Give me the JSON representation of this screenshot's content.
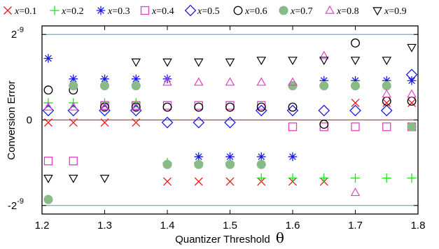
{
  "chart_data": {
    "type": "scatter",
    "title": "",
    "xlabel": "Quantizer Threshold",
    "xlabel_symbol": "θ",
    "ylabel": "Conversion Error",
    "xlim": [
      1.2,
      1.8
    ],
    "x_ticks": [
      1.2,
      1.3,
      1.4,
      1.5,
      1.6,
      1.7,
      1.8
    ],
    "x_tick_labels": [
      "1.2",
      "1.3",
      "1.4",
      "1.5",
      "1.6",
      "1.7",
      "1.8"
    ],
    "ylim": [
      -1.1,
      1.1
    ],
    "y_ticks": [
      {
        "value": 1,
        "base": "2",
        "exp": "-9"
      },
      {
        "value": 0,
        "base": "0",
        "exp": ""
      },
      {
        "value": -1,
        "base": "-2",
        "exp": "-9"
      }
    ],
    "y_unit_note": "y values expressed in units of 2^-9",
    "reference_lines": [
      {
        "y": 1,
        "color": "#7fa8b5"
      },
      {
        "y": -1,
        "color": "#7fa8b5"
      },
      {
        "y": 0,
        "color": "#e03030"
      }
    ],
    "legend_position": "top",
    "series": [
      {
        "name": "x=0.1",
        "var": "x",
        "val": "=0.1",
        "marker": "x",
        "color": "#e81818",
        "points": [
          [
            1.21,
            -0.03
          ],
          [
            1.25,
            -0.03
          ],
          [
            1.3,
            -0.03
          ],
          [
            1.35,
            -0.03
          ],
          [
            1.4,
            -0.72
          ],
          [
            1.45,
            -0.72
          ],
          [
            1.5,
            -0.72
          ],
          [
            1.55,
            -0.72
          ],
          [
            1.6,
            -0.72
          ],
          [
            1.65,
            -0.72
          ],
          [
            1.7,
            0.2
          ],
          [
            1.75,
            0.2
          ],
          [
            1.79,
            0.2
          ]
        ]
      },
      {
        "name": "x=0.2",
        "var": "x",
        "val": "=0.2",
        "marker": "plus",
        "color": "#22dd22",
        "points": [
          [
            1.21,
            0.2
          ],
          [
            1.25,
            0.2
          ],
          [
            1.3,
            0.2
          ],
          [
            1.35,
            0.2
          ],
          [
            1.4,
            -0.5
          ],
          [
            1.45,
            -0.5
          ],
          [
            1.5,
            -0.5
          ],
          [
            1.55,
            -0.68
          ],
          [
            1.6,
            -0.68
          ],
          [
            1.65,
            -0.68
          ],
          [
            1.7,
            -0.68
          ],
          [
            1.75,
            -0.68
          ],
          [
            1.79,
            -0.68
          ]
        ]
      },
      {
        "name": "x=0.3",
        "var": "x",
        "val": "=0.3",
        "marker": "asterisk",
        "color": "#1a1ae8",
        "points": [
          [
            1.21,
            0.72
          ],
          [
            1.25,
            0.48
          ],
          [
            1.3,
            0.48
          ],
          [
            1.35,
            0.48
          ],
          [
            1.4,
            0.48
          ],
          [
            1.45,
            -0.43
          ],
          [
            1.5,
            -0.43
          ],
          [
            1.55,
            -0.43
          ],
          [
            1.6,
            -0.43
          ],
          [
            1.65,
            0.46
          ],
          [
            1.7,
            0.46
          ],
          [
            1.75,
            0.46
          ],
          [
            1.79,
            0.46
          ]
        ]
      },
      {
        "name": "x=0.4",
        "var": "x",
        "val": "=0.4",
        "marker": "square",
        "color": "#e040c0",
        "points": [
          [
            1.21,
            -0.48
          ],
          [
            1.25,
            -0.48
          ],
          [
            1.3,
            0.17
          ],
          [
            1.35,
            0.17
          ],
          [
            1.4,
            0.17
          ],
          [
            1.45,
            0.17
          ],
          [
            1.5,
            0.17
          ],
          [
            1.55,
            0.17
          ],
          [
            1.6,
            -0.08
          ],
          [
            1.65,
            -0.08
          ],
          [
            1.7,
            -0.08
          ],
          [
            1.75,
            -0.08
          ],
          [
            1.79,
            -0.08
          ]
        ]
      },
      {
        "name": "x=0.5",
        "var": "x",
        "val": "=0.5",
        "marker": "diamond",
        "color": "#1a1ae8",
        "points": [
          [
            1.21,
            0.11
          ],
          [
            1.25,
            0.11
          ],
          [
            1.3,
            0.11
          ],
          [
            1.35,
            0.11
          ],
          [
            1.4,
            -0.03
          ],
          [
            1.45,
            -0.03
          ],
          [
            1.5,
            -0.03
          ],
          [
            1.55,
            0.11
          ],
          [
            1.6,
            0.11
          ],
          [
            1.65,
            0.11
          ],
          [
            1.7,
            0.11
          ],
          [
            1.75,
            0.11
          ],
          [
            1.79,
            0.53
          ]
        ]
      },
      {
        "name": "x=0.6",
        "var": "x",
        "val": "=0.6",
        "marker": "circle",
        "color": "#000000",
        "points": [
          [
            1.21,
            0.35
          ],
          [
            1.25,
            0.35
          ],
          [
            1.3,
            0.15
          ],
          [
            1.35,
            0.15
          ],
          [
            1.4,
            0.15
          ],
          [
            1.45,
            0.15
          ],
          [
            1.5,
            0.15
          ],
          [
            1.55,
            0.15
          ],
          [
            1.6,
            0.15
          ],
          [
            1.65,
            -0.05
          ],
          [
            1.7,
            0.9
          ],
          [
            1.75,
            0.22
          ],
          [
            1.79,
            0.22
          ]
        ]
      },
      {
        "name": "x=0.7",
        "var": "x",
        "val": "=0.7",
        "marker": "filled-circle",
        "color": "#88bb88",
        "points": [
          [
            1.21,
            -0.93
          ],
          [
            1.25,
            0.4
          ],
          [
            1.3,
            0.4
          ],
          [
            1.35,
            0.4
          ],
          [
            1.4,
            -0.52
          ],
          [
            1.45,
            -0.52
          ],
          [
            1.5,
            -0.52
          ],
          [
            1.55,
            -0.52
          ],
          [
            1.6,
            0.4
          ],
          [
            1.65,
            0.4
          ],
          [
            1.7,
            0.4
          ],
          [
            1.75,
            0.4
          ],
          [
            1.79,
            -0.08
          ]
        ]
      },
      {
        "name": "x=0.8",
        "var": "x",
        "val": "=0.8",
        "marker": "triangle-up",
        "color": "#e040c0",
        "points": [
          [
            1.21,
            0.15
          ],
          [
            1.25,
            0.15
          ],
          [
            1.3,
            0.15
          ],
          [
            1.35,
            0.15
          ],
          [
            1.4,
            0.44
          ],
          [
            1.45,
            0.44
          ],
          [
            1.5,
            0.44
          ],
          [
            1.55,
            0.44
          ],
          [
            1.6,
            0.44
          ],
          [
            1.65,
            0.75
          ],
          [
            1.7,
            -0.85
          ],
          [
            1.75,
            0.3
          ],
          [
            1.79,
            0.3
          ]
        ]
      },
      {
        "name": "x=0.9",
        "var": "x",
        "val": "=0.9",
        "marker": "triangle-down",
        "color": "#000000",
        "points": [
          [
            1.21,
            -0.68
          ],
          [
            1.25,
            -0.68
          ],
          [
            1.3,
            -0.68
          ],
          [
            1.35,
            0.68
          ],
          [
            1.4,
            0.68
          ],
          [
            1.45,
            0.68
          ],
          [
            1.5,
            0.68
          ],
          [
            1.55,
            0.7
          ],
          [
            1.6,
            0.7
          ],
          [
            1.65,
            0.7
          ],
          [
            1.7,
            0.7
          ],
          [
            1.75,
            0.7
          ],
          [
            1.79,
            0.85
          ]
        ]
      }
    ]
  }
}
